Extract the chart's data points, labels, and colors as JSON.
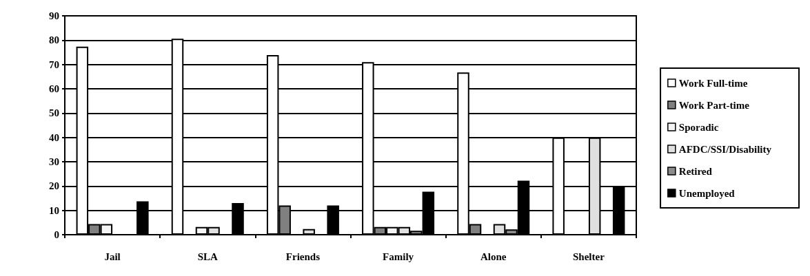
{
  "chart_data": {
    "type": "bar",
    "categories": [
      "Jail",
      "SLA",
      "Friends",
      "Family",
      "Alone",
      "Shelter"
    ],
    "series": [
      {
        "name": "Work Full-time",
        "color": "#ffffff",
        "values": [
          77.3,
          80.6,
          73.9,
          71,
          66.7,
          40
        ]
      },
      {
        "name": "Work Part-time",
        "color": "#808080",
        "values": [
          4.4,
          0,
          12,
          3.2,
          4.4,
          0
        ]
      },
      {
        "name": "Sporadic",
        "color": "#f4f4f4",
        "values": [
          4.4,
          3.2,
          0,
          3.2,
          0,
          0
        ]
      },
      {
        "name": "AFDC/SSI/Disability",
        "color": "#e0e0e0",
        "values": [
          0,
          3.2,
          2.3,
          3.2,
          4.4,
          40
        ]
      },
      {
        "name": "Retired",
        "color": "#8c8c8c",
        "values": [
          0,
          0,
          0,
          1.6,
          2.2,
          0
        ]
      },
      {
        "name": "Unemployed",
        "color": "#000000",
        "values": [
          13.7,
          13,
          12,
          17.7,
          22.2,
          20
        ]
      }
    ],
    "ylim": [
      0,
      90
    ],
    "yticks": [
      0,
      10,
      20,
      30,
      40,
      50,
      60,
      70,
      80,
      90
    ],
    "grid": "y",
    "legend": "right"
  }
}
